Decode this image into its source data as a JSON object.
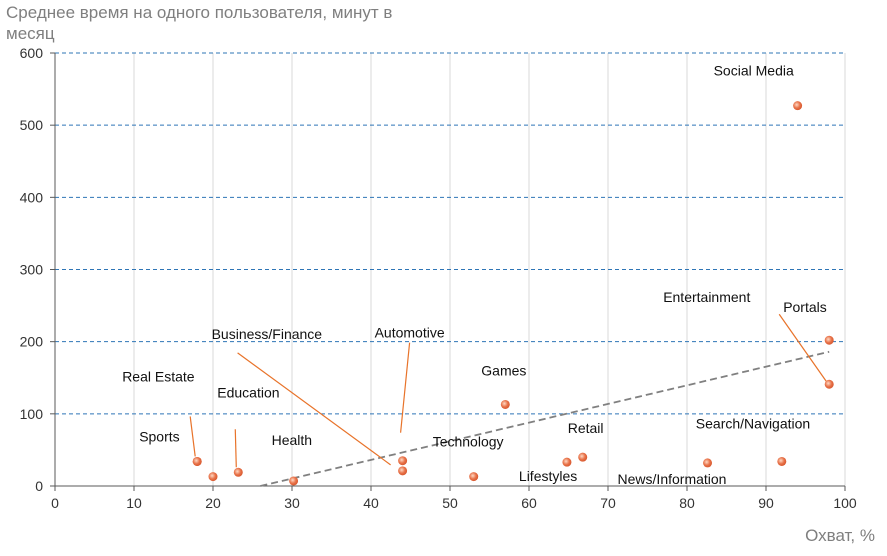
{
  "chart_data": {
    "type": "scatter",
    "ylabel": "Среднее время на одного пользователя, минут в месяц",
    "xlabel": "Охват, %",
    "xlim": [
      0,
      100
    ],
    "ylim": [
      0,
      600
    ],
    "xticks": [
      "0",
      "10",
      "20",
      "30",
      "40",
      "50",
      "60",
      "70",
      "80",
      "90",
      "100"
    ],
    "yticks": [
      "0",
      "100",
      "200",
      "300",
      "400",
      "500",
      "600"
    ],
    "grid": "horizontal dashed + vertical solid",
    "point_color": "#e8734a",
    "leader_color": "#e8732a",
    "trend_color": "#808080",
    "trendline": {
      "x": [
        26,
        98
      ],
      "y": [
        0,
        186
      ]
    },
    "points": [
      {
        "name": "Sports",
        "x": 18,
        "y": 34
      },
      {
        "name": "Real Estate",
        "x": 18,
        "y": 34
      },
      {
        "name": "",
        "x": 20,
        "y": 13
      },
      {
        "name": "Education",
        "x": 23.2,
        "y": 19
      },
      {
        "name": "Health",
        "x": 30.2,
        "y": 7
      },
      {
        "name": "Business/Finance",
        "x": 44,
        "y": 21
      },
      {
        "name": "Automotive",
        "x": 44,
        "y": 35
      },
      {
        "name": "Technology",
        "x": 53,
        "y": 13
      },
      {
        "name": "Games",
        "x": 57,
        "y": 113
      },
      {
        "name": "Lifestyles",
        "x": 64.8,
        "y": 33
      },
      {
        "name": "Retail",
        "x": 66.8,
        "y": 40
      },
      {
        "name": "News/Information",
        "x": 82.6,
        "y": 32
      },
      {
        "name": "Search/Navigation",
        "x": 92,
        "y": 34
      },
      {
        "name": "Social Media",
        "x": 94,
        "y": 527
      },
      {
        "name": "Portals",
        "x": 98,
        "y": 202
      },
      {
        "name": "Entertainment",
        "x": 98,
        "y": 141
      }
    ]
  }
}
